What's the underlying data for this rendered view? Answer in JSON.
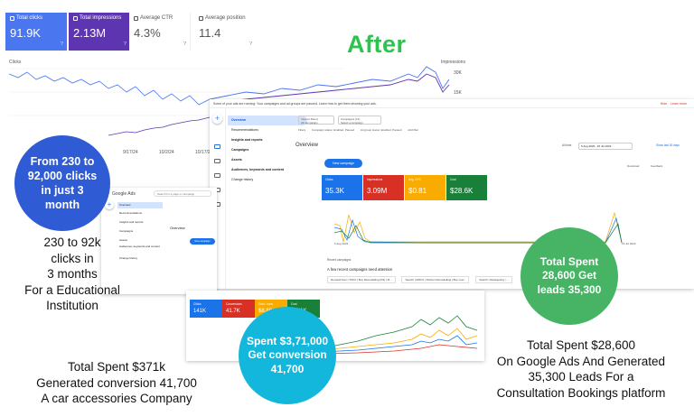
{
  "heading": "After",
  "search_console": {
    "cards": [
      {
        "label": "Total clicks",
        "value": "91.9K"
      },
      {
        "label": "Total impressions",
        "value": "2.13M"
      },
      {
        "label": "Average CTR",
        "value": "4.3%"
      },
      {
        "label": "Average position",
        "value": "11.4"
      }
    ],
    "axis_left": "Clicks",
    "axis_right": "Impressions",
    "right_ticks": [
      "30K",
      "15K"
    ],
    "x_ticks": [
      "9/17/24",
      "10/2/24",
      "10/17/24"
    ],
    "colors": {
      "clicks": "#4a76f0",
      "impressions": "#5e35b1"
    }
  },
  "ads_main": {
    "banner": "Some of your ads are running: Your campaigns and ad groups are paused. Learn how to get them showing your ads.",
    "banner_actions": [
      "Hide",
      "Learn more"
    ],
    "filters_label": "Filters",
    "filter_chips": [
      "Campaign status: Enabled, Paused",
      "Ad group status: Enabled, Paused",
      "Add filter"
    ],
    "views": {
      "label": "View (2 filters)",
      "value": "All campaigns"
    },
    "campaigns_dropdown": {
      "label": "Campaigns (12)",
      "value": "Select a campaign"
    },
    "nav_icons": [
      "Create",
      "Campaigns",
      "Goals",
      "Tools",
      "Billing",
      "Admin"
    ],
    "menu": [
      {
        "label": "Overview",
        "active": true
      },
      {
        "label": "Recommendations",
        "active": false
      },
      {
        "label": "Insights and reports",
        "active": false
      },
      {
        "label": "Campaigns",
        "active": false
      },
      {
        "label": "Assets",
        "active": false
      },
      {
        "label": "Audiences, keywords and content",
        "active": false
      },
      {
        "label": "Change history",
        "active": false
      }
    ],
    "overview_title": "Overview",
    "date_range": "6 Aug 2023 - 15 Jul 2024",
    "date_prefix": "All time",
    "show_last": "Show last 30 days",
    "download": "Download",
    "feedback": "Feedback",
    "new_campaign": "New campaign",
    "metrics": [
      {
        "label": "Clicks",
        "value": "35.3K",
        "color": "#1a73e8"
      },
      {
        "label": "Impressions",
        "value": "3.09M",
        "color": "#d93025"
      },
      {
        "label": "Avg. CPC",
        "value": "$0.81",
        "color": "#f9ab00"
      },
      {
        "label": "Cost",
        "value": "$28.6K",
        "color": "#188038"
      }
    ],
    "chart_start": "6 Aug 2023",
    "chart_end": "15 Jul 2024",
    "recent_campaigns": "Recent campaigns",
    "attention": "A few recent campaigns need attention",
    "campaign_chips": [
      "Demand Gen | TOFU | Buy Remodelling [US] | M...",
      "Search | MOFU | Kitchen Remodelling | Buy Low...",
      "Search | Retargeting | ..."
    ]
  },
  "ads_small": {
    "logo": "Google Ads",
    "search_placeholder": "Search for a page or campaign",
    "overview": "Overview",
    "menu": [
      "Overview",
      "Recommendations",
      "Insights and reports",
      "Campaigns",
      "Assets",
      "Audiences, keywords and content",
      "Change history"
    ],
    "new_btn": "New campaign"
  },
  "ads_bottom": {
    "metrics": [
      {
        "label": "Clicks",
        "value": "141K",
        "color": "#1a73e8"
      },
      {
        "label": "Conversions",
        "value": "41.7K",
        "color": "#d93025"
      },
      {
        "label": "Cost / conv.",
        "value": "$8.89",
        "color": "#f9ab00"
      },
      {
        "label": "Cost",
        "value": "$371K",
        "color": "#188038"
      }
    ]
  },
  "circles": {
    "blue": "From 230 to 92,000 clicks in just 3 month",
    "green": "Total Spent 28,600 Get leads 35,300",
    "cyan": "Spent $3,71,000 Get conversion 41,700"
  },
  "captions": {
    "left": [
      "230 to 92k",
      "clicks in",
      "3 months",
      "For a Educational",
      "Institution"
    ],
    "bottom_left": [
      "Total Spent $371k",
      "Generated conversion 41,700",
      "A car accessories Company"
    ],
    "bottom_right": [
      "Total Spent $28,600",
      "On Google Ads And Generated",
      "35,300 Leads For a",
      "Consultation Bookings platform"
    ]
  }
}
